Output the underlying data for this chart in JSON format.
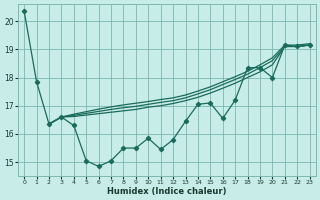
{
  "xlabel": "Humidex (Indice chaleur)",
  "bg_color": "#c8ece8",
  "grid_color": "#7ab8b0",
  "line_color": "#1a6b5a",
  "xlim": [
    -0.5,
    23.5
  ],
  "ylim": [
    14.5,
    20.6
  ],
  "xticks": [
    0,
    1,
    2,
    3,
    4,
    5,
    6,
    7,
    8,
    9,
    10,
    11,
    12,
    13,
    14,
    15,
    16,
    17,
    18,
    19,
    20,
    21,
    22,
    23
  ],
  "yticks": [
    15,
    16,
    17,
    18,
    19,
    20
  ],
  "line_main_x": [
    0,
    1,
    2,
    3,
    4,
    5,
    6,
    7,
    8,
    9,
    10,
    11,
    12,
    13,
    14,
    15,
    16,
    17,
    18,
    19,
    20,
    21,
    22,
    23
  ],
  "line_main_y": [
    20.35,
    17.85,
    16.35,
    16.6,
    16.3,
    15.05,
    14.85,
    15.05,
    15.5,
    15.5,
    15.85,
    15.45,
    15.8,
    16.45,
    17.05,
    17.1,
    16.55,
    17.2,
    18.35,
    18.35,
    18.0,
    19.15,
    19.1,
    19.15
  ],
  "line_a_x": [
    2,
    3,
    4,
    5,
    6,
    7,
    8,
    9,
    10,
    11,
    12,
    13,
    14,
    15,
    16,
    17,
    18,
    19,
    20,
    21,
    22,
    23
  ],
  "line_a_y": [
    16.35,
    16.6,
    16.62,
    16.67,
    16.72,
    16.77,
    16.82,
    16.87,
    16.95,
    17.0,
    17.08,
    17.18,
    17.3,
    17.45,
    17.62,
    17.8,
    18.0,
    18.2,
    18.45,
    19.1,
    19.1,
    19.15
  ],
  "line_b_x": [
    2,
    3,
    4,
    5,
    6,
    7,
    8,
    9,
    10,
    11,
    12,
    13,
    14,
    15,
    16,
    17,
    18,
    19,
    20,
    21,
    22,
    23
  ],
  "line_b_y": [
    16.35,
    16.6,
    16.66,
    16.73,
    16.8,
    16.87,
    16.93,
    16.98,
    17.05,
    17.12,
    17.18,
    17.28,
    17.42,
    17.57,
    17.75,
    17.93,
    18.12,
    18.35,
    18.6,
    19.1,
    19.1,
    19.15
  ],
  "line_c_x": [
    2,
    3,
    4,
    5,
    6,
    7,
    8,
    9,
    10,
    11,
    12,
    13,
    14,
    15,
    16,
    17,
    18,
    19,
    20,
    21,
    22,
    23
  ],
  "line_c_y": [
    16.35,
    16.6,
    16.7,
    16.79,
    16.88,
    16.96,
    17.03,
    17.09,
    17.15,
    17.22,
    17.28,
    17.38,
    17.52,
    17.67,
    17.85,
    18.03,
    18.22,
    18.45,
    18.7,
    19.15,
    19.15,
    19.2
  ]
}
